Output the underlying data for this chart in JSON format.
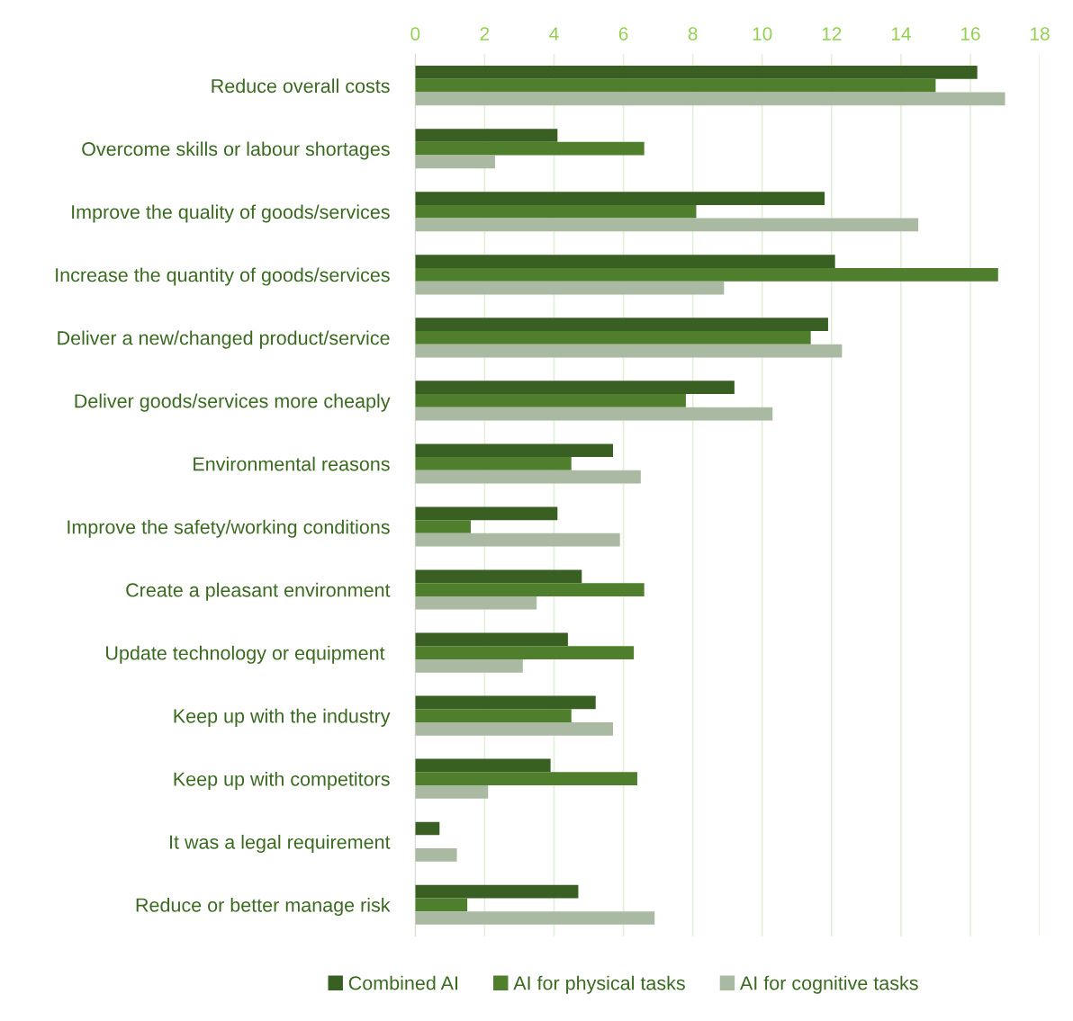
{
  "chart_data": {
    "type": "bar",
    "orientation": "horizontal",
    "categories": [
      "Reduce overall costs",
      "Overcome skills or labour shortages",
      "Improve the quality of goods/services",
      "Increase the quantity of goods/services",
      "Deliver a new/changed product/service",
      "Deliver goods/services more cheaply",
      "Environmental reasons",
      "Improve the safety/working conditions",
      "Create a pleasant environment",
      "Update technology or equipment ",
      "Keep up with the industry",
      "Keep up with competitors",
      "It was a legal requirement",
      "Reduce or better manage risk"
    ],
    "series": [
      {
        "name": "Combined AI",
        "color": "#3a5f22",
        "values": [
          16.2,
          4.1,
          11.8,
          12.1,
          11.9,
          9.2,
          5.7,
          4.1,
          4.8,
          4.4,
          5.2,
          3.9,
          0.7,
          4.7
        ]
      },
      {
        "name": "AI for physical tasks",
        "color": "#4f7f2c",
        "values": [
          15.0,
          6.6,
          8.1,
          16.8,
          11.4,
          7.8,
          4.5,
          1.6,
          6.6,
          6.3,
          4.5,
          6.4,
          0,
          1.5
        ]
      },
      {
        "name": "AI for cognitive tasks",
        "color": "#aab9a2",
        "values": [
          17.0,
          2.3,
          14.5,
          8.9,
          12.3,
          10.3,
          6.5,
          5.9,
          3.5,
          3.1,
          5.7,
          2.1,
          1.2,
          6.9
        ]
      }
    ],
    "xlim": [
      0,
      18
    ],
    "xticks": [
      0,
      2,
      4,
      6,
      8,
      10,
      12,
      14,
      16,
      18
    ],
    "grid": "x",
    "legend": "bottom"
  }
}
